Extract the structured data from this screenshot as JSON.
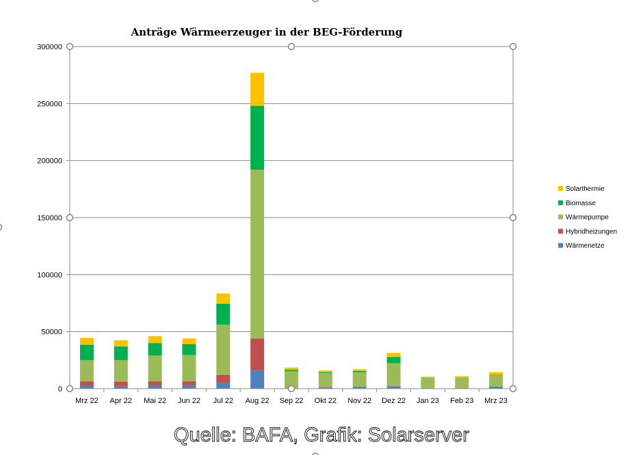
{
  "chart_data": {
    "type": "bar",
    "stacked": true,
    "title": "Anträge Wärmeerzeuger in der  BEG-Förderung",
    "source_note": "Quelle: BAFA, Grafik: Solarserver",
    "categories": [
      "Mrz 22",
      "Apr 22",
      "Mai 22",
      "Jun 22",
      "Jul 22",
      "Aug 22",
      "Sep 22",
      "Okt 22",
      "Nov 22",
      "Dez 22",
      "Jan 23",
      "Feb 23",
      "Mrz 23"
    ],
    "ylim": [
      0,
      300000
    ],
    "yticks": [
      0,
      50000,
      100000,
      150000,
      200000,
      250000,
      300000
    ],
    "grid": true,
    "legend_position": "right",
    "series": [
      {
        "name": "Wärmenetze",
        "color": "#4f81bd",
        "values": [
          3000,
          2000,
          3000,
          2500,
          5000,
          16000,
          500,
          1000,
          1500,
          2000,
          500,
          500,
          1500
        ]
      },
      {
        "name": "Hybridheizungen",
        "color": "#c0504d",
        "values": [
          3500,
          4000,
          3500,
          4000,
          7000,
          28000,
          300,
          200,
          200,
          300,
          200,
          200,
          200
        ]
      },
      {
        "name": "Wärmepumpe",
        "color": "#9bbb59",
        "values": [
          18500,
          19000,
          22500,
          23000,
          44000,
          148000,
          14500,
          12500,
          12500,
          20000,
          8500,
          8500,
          10500
        ]
      },
      {
        "name": "Biomasse",
        "color": "#00b050",
        "values": [
          13500,
          12000,
          11000,
          9500,
          18500,
          56000,
          1200,
          800,
          1300,
          5500,
          300,
          300,
          300
        ]
      },
      {
        "name": "Solarthermie",
        "color": "#ffc000",
        "values": [
          6000,
          5500,
          6000,
          5000,
          9000,
          29000,
          2000,
          1500,
          1500,
          3500,
          1000,
          1500,
          2000
        ]
      }
    ]
  }
}
